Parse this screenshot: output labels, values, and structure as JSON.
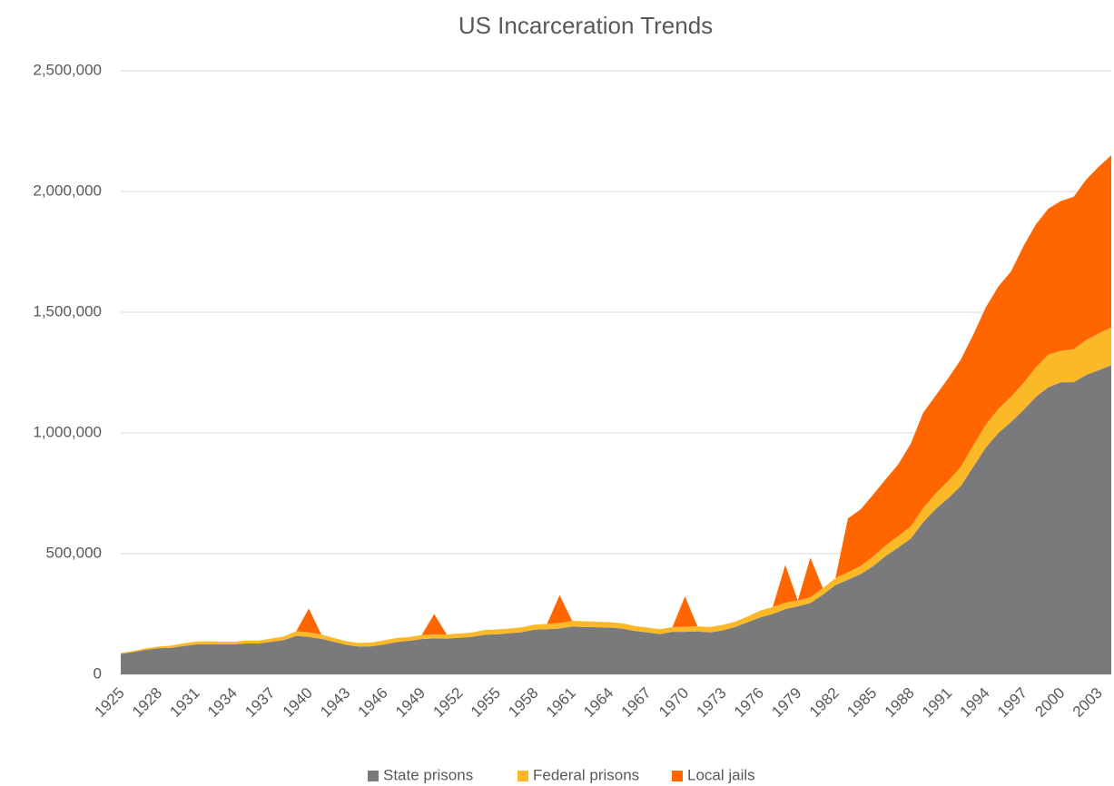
{
  "chart_data": {
    "type": "stacked_area",
    "title": "US Incarceration Trends",
    "categories": [
      "1925",
      null,
      null,
      "1928",
      null,
      null,
      "1931",
      null,
      null,
      "1934",
      null,
      null,
      "1937",
      null,
      null,
      "1940",
      null,
      null,
      "1943",
      null,
      null,
      "1946",
      null,
      null,
      "1949",
      null,
      null,
      "1952",
      null,
      null,
      "1955",
      null,
      null,
      "1958",
      null,
      null,
      "1961",
      null,
      null,
      "1964",
      null,
      null,
      "1967",
      null,
      null,
      "1970",
      null,
      null,
      "1973",
      null,
      null,
      "1976",
      null,
      null,
      "1979",
      null,
      null,
      "1982",
      null,
      null,
      "1985",
      null,
      null,
      "1988",
      null,
      null,
      "1991",
      null,
      null,
      "1994",
      null,
      null,
      "1997",
      null,
      null,
      "2000",
      null,
      null,
      "2003",
      null
    ],
    "series": [
      {
        "name": "State prisons",
        "color": "#7a797b",
        "values": [
          85000,
          92000,
          102000,
          108000,
          110000,
          117000,
          124000,
          125000,
          125000,
          124000,
          128000,
          128000,
          135000,
          142000,
          160000,
          155000,
          147000,
          135000,
          122000,
          115000,
          116000,
          124000,
          134000,
          139000,
          146000,
          149000,
          148000,
          152000,
          155000,
          164000,
          166000,
          170000,
          175000,
          185000,
          187000,
          190000,
          198000,
          196000,
          195000,
          194000,
          190000,
          180000,
          174000,
          167000,
          176000,
          176000,
          178000,
          174000,
          182000,
          196000,
          216000,
          236000,
          250000,
          270000,
          282000,
          295000,
          330000,
          370000,
          392000,
          415000,
          448000,
          490000,
          525000,
          562000,
          630000,
          685000,
          730000,
          780000,
          860000,
          940000,
          1000000,
          1045000,
          1095000,
          1150000,
          1190000,
          1210000,
          1210000,
          1240000,
          1260000,
          1280000
        ]
      },
      {
        "name": "Federal prisons",
        "color": "#fbb928",
        "values": [
          4000,
          5000,
          6000,
          7000,
          9000,
          12000,
          12000,
          12000,
          11000,
          11000,
          12000,
          12000,
          13000,
          15000,
          19000,
          19000,
          18000,
          16000,
          15000,
          15000,
          16000,
          17000,
          17000,
          16000,
          17000,
          17000,
          17000,
          17000,
          18000,
          20000,
          20000,
          20000,
          20000,
          21000,
          22000,
          23000,
          24000,
          24000,
          23000,
          22000,
          22000,
          20000,
          20000,
          20000,
          20000,
          21000,
          21000,
          22000,
          23000,
          22000,
          24000,
          28000,
          29000,
          27000,
          24000,
          24000,
          27000,
          29000,
          31000,
          34000,
          40000,
          44000,
          48000,
          50000,
          59000,
          65000,
          71000,
          80000,
          89000,
          95000,
          100000,
          105000,
          112000,
          123000,
          135000,
          130000,
          137000,
          145000,
          152000,
          157000
        ]
      },
      {
        "name": "Local jails",
        "color": "#ff6600",
        "values": [
          0,
          0,
          0,
          0,
          0,
          0,
          0,
          0,
          0,
          0,
          0,
          0,
          0,
          0,
          0,
          99000,
          0,
          0,
          0,
          0,
          0,
          0,
          0,
          0,
          0,
          84000,
          0,
          0,
          0,
          0,
          0,
          0,
          0,
          0,
          0,
          115000,
          0,
          0,
          0,
          0,
          0,
          0,
          0,
          0,
          0,
          126000,
          0,
          0,
          0,
          0,
          0,
          0,
          0,
          156000,
          0,
          164000,
          0,
          0,
          223000,
          234000,
          256000,
          274000,
          296000,
          343000,
          395000,
          405000,
          426000,
          444000,
          459000,
          486000,
          507000,
          518000,
          567000,
          592000,
          605000,
          621000,
          631000,
          665000,
          691000,
          713000
        ]
      }
    ],
    "ylim": [
      0,
      2500000
    ],
    "yticks": [
      0,
      {
        "value": 500000,
        "label": "500,000"
      },
      {
        "value": 1000000,
        "label": "1,000,000"
      },
      {
        "value": 1500000,
        "label": "1,500,000"
      },
      {
        "value": 2000000,
        "label": "2,000,000"
      },
      {
        "value": 2500000,
        "label": "2,500,000"
      }
    ],
    "grid": true,
    "legend": "bottom"
  }
}
